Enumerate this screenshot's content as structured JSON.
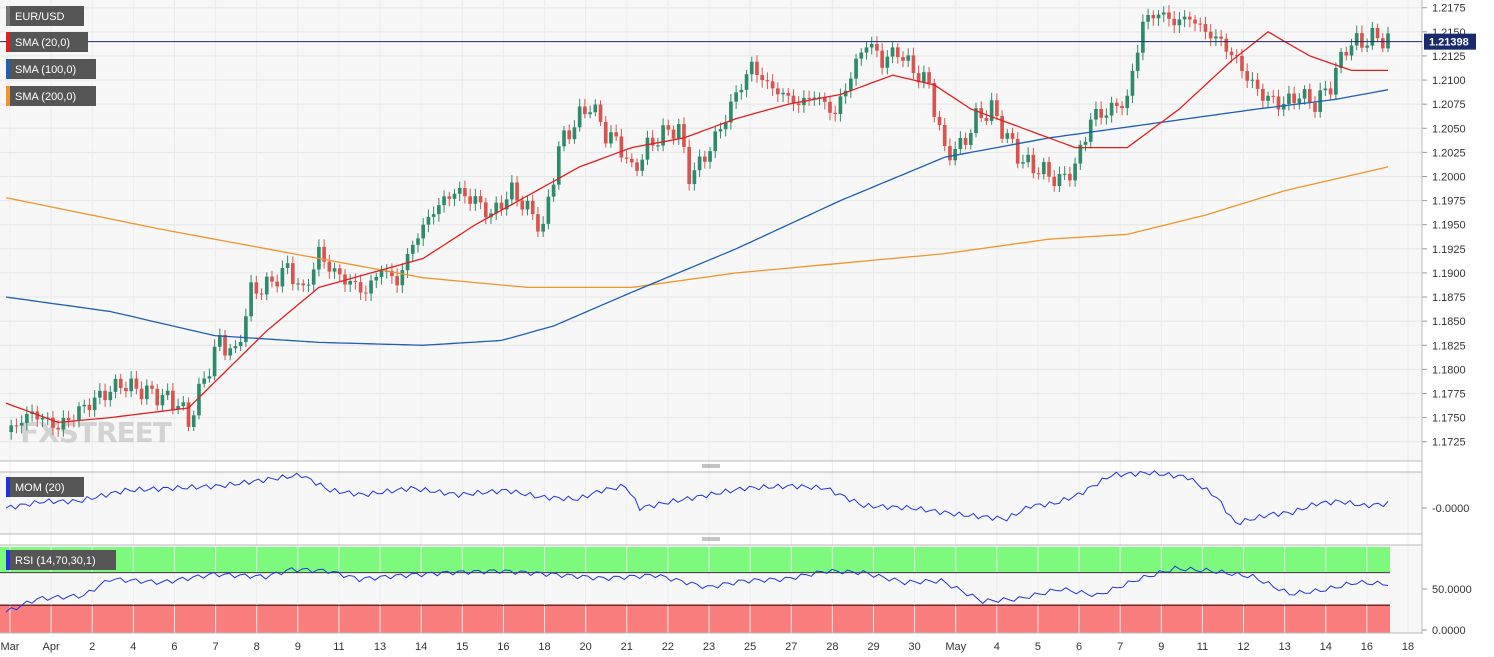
{
  "colors": {
    "bull": "#2f8a6c",
    "bear": "#d9534f",
    "sma20": "#e02020",
    "sma100": "#1f5fb4",
    "sma200": "#f0952a",
    "mom": "#2233dd",
    "rsi": "#2233dd",
    "rsi_over": "#7dfa7d",
    "rsi_under": "#fa7d7d",
    "tag_bg": "#555555"
  },
  "chart_data": {
    "type": "candlestick",
    "symbol": "EUR/USD",
    "last_price": 1.21398,
    "price_ylim": [
      1.1705,
      1.2183
    ],
    "price_ticks": [
      "1.2175",
      "1.2150",
      "1.2125",
      "1.2100",
      "1.2075",
      "1.2050",
      "1.2025",
      "1.2000",
      "1.1975",
      "1.1950",
      "1.1925",
      "1.1900",
      "1.1875",
      "1.1850",
      "1.1825",
      "1.1800",
      "1.1775",
      "1.1750",
      "1.1725"
    ],
    "x_ticks": [
      "Mar",
      "Apr",
      "2",
      "4",
      "6",
      "7",
      "8",
      "9",
      "11",
      "13",
      "14",
      "15",
      "16",
      "18",
      "20",
      "21",
      "22",
      "23",
      "25",
      "27",
      "28",
      "29",
      "30",
      "May",
      "4",
      "5",
      "6",
      "7",
      "9",
      "11",
      "12",
      "13",
      "14",
      "16",
      "18"
    ],
    "indicators": {
      "sma20": "SMA (20,0)",
      "sma100": "SMA (100,0)",
      "sma200": "SMA (200,0)",
      "mom": "MOM (20)",
      "rsi": "RSI (14,70,30,1)"
    },
    "mom_tick": "-0.0000",
    "rsi_ticks": [
      "50.0000",
      "0.0000"
    ],
    "rsi_levels": [
      70,
      30
    ],
    "watermark": "FXSTREET",
    "price_anchors": [
      [
        0,
        1.1735
      ],
      [
        5,
        1.1755
      ],
      [
        10,
        1.174
      ],
      [
        16,
        1.1765
      ],
      [
        22,
        1.1785
      ],
      [
        28,
        1.1775
      ],
      [
        33,
        1.1765
      ],
      [
        35,
        1.1745
      ],
      [
        38,
        1.179
      ],
      [
        41,
        1.183
      ],
      [
        44,
        1.1815
      ],
      [
        47,
        1.188
      ],
      [
        51,
        1.189
      ],
      [
        54,
        1.1905
      ],
      [
        57,
        1.188
      ],
      [
        60,
        1.192
      ],
      [
        63,
        1.19
      ],
      [
        66,
        1.189
      ],
      [
        69,
        1.188
      ],
      [
        72,
        1.1905
      ],
      [
        75,
        1.189
      ],
      [
        78,
        1.193
      ],
      [
        82,
        1.1965
      ],
      [
        86,
        1.1985
      ],
      [
        90,
        1.1975
      ],
      [
        93,
        1.196
      ],
      [
        97,
        1.1985
      ],
      [
        101,
        1.196
      ],
      [
        103,
        1.1945
      ],
      [
        106,
        1.203
      ],
      [
        109,
        1.2055
      ],
      [
        112,
        1.2075
      ],
      [
        115,
        1.2045
      ],
      [
        118,
        1.203
      ],
      [
        120,
        1.2005
      ],
      [
        123,
        1.203
      ],
      [
        126,
        1.2045
      ],
      [
        129,
        1.205
      ],
      [
        131,
        1.2
      ],
      [
        134,
        1.202
      ],
      [
        137,
        1.205
      ],
      [
        140,
        1.2085
      ],
      [
        143,
        1.2115
      ],
      [
        146,
        1.2095
      ],
      [
        149,
        1.2085
      ],
      [
        152,
        1.2075
      ],
      [
        155,
        1.2085
      ],
      [
        159,
        1.2065
      ],
      [
        162,
        1.2105
      ],
      [
        165,
        1.214
      ],
      [
        168,
        1.212
      ],
      [
        171,
        1.213
      ],
      [
        174,
        1.211
      ],
      [
        177,
        1.2095
      ],
      [
        180,
        1.2025
      ],
      [
        183,
        1.203
      ],
      [
        186,
        1.206
      ],
      [
        189,
        1.207
      ],
      [
        192,
        1.204
      ],
      [
        195,
        1.2015
      ],
      [
        199,
        1.2005
      ],
      [
        202,
        1.1995
      ],
      [
        205,
        1.201
      ],
      [
        208,
        1.206
      ],
      [
        212,
        1.207
      ],
      [
        215,
        1.208
      ],
      [
        218,
        1.216
      ],
      [
        221,
        1.217
      ],
      [
        224,
        1.216
      ],
      [
        227,
        1.2165
      ],
      [
        230,
        1.215
      ],
      [
        233,
        1.214
      ],
      [
        236,
        1.212
      ],
      [
        239,
        1.2095
      ],
      [
        242,
        1.208
      ],
      [
        245,
        1.2075
      ],
      [
        248,
        1.2085
      ],
      [
        251,
        1.2075
      ],
      [
        254,
        1.2095
      ],
      [
        257,
        1.2135
      ],
      [
        260,
        1.214
      ],
      [
        263,
        1.2145
      ],
      [
        265,
        1.214
      ]
    ],
    "sma20_anchors": [
      [
        0,
        1.1765
      ],
      [
        10,
        1.1745
      ],
      [
        20,
        1.175
      ],
      [
        35,
        1.176
      ],
      [
        50,
        1.184
      ],
      [
        60,
        1.1885
      ],
      [
        70,
        1.19
      ],
      [
        80,
        1.1915
      ],
      [
        90,
        1.195
      ],
      [
        100,
        1.198
      ],
      [
        110,
        1.201
      ],
      [
        120,
        1.203
      ],
      [
        130,
        1.204
      ],
      [
        140,
        1.206
      ],
      [
        150,
        1.2075
      ],
      [
        160,
        1.2085
      ],
      [
        170,
        1.2105
      ],
      [
        178,
        1.2095
      ],
      [
        185,
        1.207
      ],
      [
        195,
        1.205
      ],
      [
        205,
        1.203
      ],
      [
        215,
        1.203
      ],
      [
        225,
        1.207
      ],
      [
        235,
        1.212
      ],
      [
        242,
        1.215
      ],
      [
        250,
        1.2125
      ],
      [
        258,
        1.211
      ],
      [
        265,
        1.211
      ]
    ],
    "sma100_anchors": [
      [
        0,
        1.1875
      ],
      [
        20,
        1.186
      ],
      [
        40,
        1.1835
      ],
      [
        60,
        1.1828
      ],
      [
        80,
        1.1825
      ],
      [
        95,
        1.183
      ],
      [
        105,
        1.1845
      ],
      [
        120,
        1.188
      ],
      [
        140,
        1.1925
      ],
      [
        160,
        1.1975
      ],
      [
        180,
        1.202
      ],
      [
        200,
        1.204
      ],
      [
        220,
        1.2055
      ],
      [
        240,
        1.207
      ],
      [
        255,
        1.208
      ],
      [
        265,
        1.209
      ]
    ],
    "sma200_anchors": [
      [
        0,
        1.1978
      ],
      [
        30,
        1.1945
      ],
      [
        60,
        1.1915
      ],
      [
        80,
        1.1895
      ],
      [
        100,
        1.1885
      ],
      [
        120,
        1.1885
      ],
      [
        140,
        1.19
      ],
      [
        160,
        1.191
      ],
      [
        180,
        1.192
      ],
      [
        200,
        1.1935
      ],
      [
        215,
        1.194
      ],
      [
        230,
        1.196
      ],
      [
        245,
        1.1985
      ],
      [
        265,
        1.201
      ]
    ],
    "mom_anchors": [
      [
        0,
        0.0
      ],
      [
        8,
        0.3
      ],
      [
        15,
        0.3
      ],
      [
        25,
        0.8
      ],
      [
        35,
        0.9
      ],
      [
        45,
        1.0
      ],
      [
        55,
        1.3
      ],
      [
        62,
        1.5
      ],
      [
        68,
        0.8
      ],
      [
        75,
        0.6
      ],
      [
        85,
        0.9
      ],
      [
        95,
        0.6
      ],
      [
        105,
        0.8
      ],
      [
        112,
        0.5
      ],
      [
        120,
        0.4
      ],
      [
        125,
        0.8
      ],
      [
        130,
        1.0
      ],
      [
        133,
        0.0
      ],
      [
        140,
        0.3
      ],
      [
        145,
        0.5
      ],
      [
        155,
        0.9
      ],
      [
        165,
        1.0
      ],
      [
        172,
        0.9
      ],
      [
        180,
        0.1
      ],
      [
        190,
        0.0
      ],
      [
        200,
        -0.3
      ],
      [
        210,
        -0.5
      ],
      [
        215,
        0.1
      ],
      [
        220,
        0.2
      ],
      [
        225,
        0.6
      ],
      [
        232,
        1.5
      ],
      [
        240,
        1.6
      ],
      [
        248,
        1.4
      ],
      [
        254,
        0.5
      ],
      [
        258,
        -0.7
      ],
      [
        265,
        -0.3
      ],
      [
        270,
        -0.2
      ],
      [
        275,
        0.2
      ],
      [
        280,
        0.3
      ],
      [
        285,
        0.1
      ],
      [
        290,
        0.2
      ]
    ],
    "rsi_anchors": [
      [
        0,
        22
      ],
      [
        6,
        38
      ],
      [
        15,
        42
      ],
      [
        20,
        62
      ],
      [
        30,
        58
      ],
      [
        40,
        68
      ],
      [
        50,
        65
      ],
      [
        55,
        74
      ],
      [
        62,
        72
      ],
      [
        68,
        62
      ],
      [
        75,
        66
      ],
      [
        85,
        70
      ],
      [
        95,
        72
      ],
      [
        105,
        68
      ],
      [
        115,
        63
      ],
      [
        125,
        67
      ],
      [
        135,
        52
      ],
      [
        142,
        60
      ],
      [
        150,
        62
      ],
      [
        158,
        72
      ],
      [
        165,
        70
      ],
      [
        173,
        58
      ],
      [
        180,
        60
      ],
      [
        188,
        35
      ],
      [
        195,
        38
      ],
      [
        203,
        50
      ],
      [
        210,
        42
      ],
      [
        218,
        62
      ],
      [
        225,
        75
      ],
      [
        232,
        72
      ],
      [
        240,
        65
      ],
      [
        247,
        44
      ],
      [
        253,
        48
      ],
      [
        260,
        58
      ],
      [
        266,
        56
      ]
    ]
  }
}
